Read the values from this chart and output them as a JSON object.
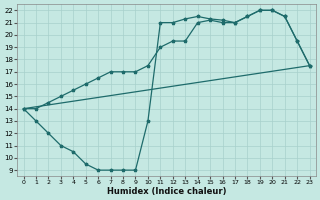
{
  "xlabel": "Humidex (Indice chaleur)",
  "xlim": [
    -0.5,
    23.5
  ],
  "ylim": [
    8.5,
    22.5
  ],
  "xticks": [
    0,
    1,
    2,
    3,
    4,
    5,
    6,
    7,
    8,
    9,
    10,
    11,
    12,
    13,
    14,
    15,
    16,
    17,
    18,
    19,
    20,
    21,
    22,
    23
  ],
  "yticks": [
    9,
    10,
    11,
    12,
    13,
    14,
    15,
    16,
    17,
    18,
    19,
    20,
    21,
    22
  ],
  "bg_color": "#c5e8e2",
  "grid_color": "#a8d0cc",
  "line_color": "#1e6b6b",
  "line1_x": [
    0,
    1,
    2,
    3,
    4,
    5,
    6,
    7,
    8,
    9,
    10,
    11,
    12,
    13,
    14,
    15,
    16,
    17,
    18,
    19,
    20,
    21,
    22,
    23
  ],
  "line1_y": [
    14,
    13,
    12,
    11,
    10.5,
    9.5,
    9,
    9,
    9,
    9,
    13,
    21,
    21,
    21.3,
    21.5,
    21.3,
    21.2,
    21,
    21.5,
    22,
    22,
    21.5,
    19.5,
    17.5
  ],
  "line2_x": [
    0,
    23
  ],
  "line2_y": [
    14,
    17.5
  ],
  "line3_x": [
    0,
    1,
    2,
    3,
    4,
    5,
    6,
    7,
    8,
    9,
    10,
    11,
    12,
    13,
    14,
    15,
    16,
    17,
    18,
    19,
    20,
    21,
    22,
    23
  ],
  "line3_y": [
    14,
    14,
    14.5,
    15,
    15.5,
    16,
    16.5,
    17,
    17,
    17,
    17.5,
    19,
    19.5,
    19.5,
    21,
    21.2,
    21,
    21,
    21.5,
    22,
    22,
    21.5,
    19.5,
    17.5
  ]
}
